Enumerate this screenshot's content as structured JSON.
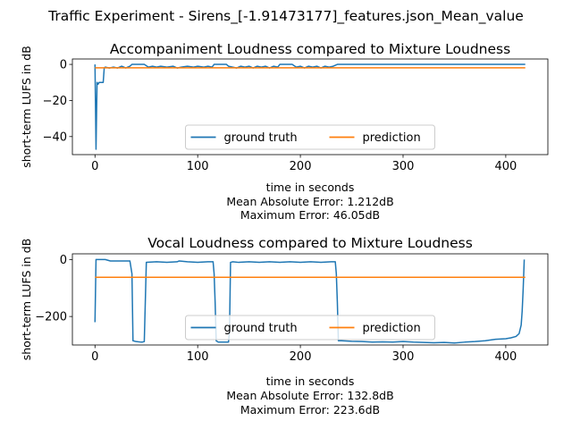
{
  "suptitle": "Traffic Experiment - Sirens_[-1.91473177]_features.json_Mean_value",
  "colors": {
    "ground_truth": "#1f77b4",
    "prediction": "#ff7f0e"
  },
  "chart_data": [
    {
      "type": "line",
      "title": "Accompaniment Loudness compared to Mixture Loudness",
      "xlabel": "time in seconds",
      "ylabel": "short-term LUFS in dB",
      "xlim": [
        -22,
        441
      ],
      "ylim": [
        -50,
        3
      ],
      "xticks": [
        0,
        100,
        200,
        300,
        400
      ],
      "yticks": [
        0,
        -20,
        -40
      ],
      "grid": false,
      "legend": {
        "position": "lower center",
        "entries": [
          "ground truth",
          "prediction"
        ]
      },
      "metrics": [
        "Mean Absolute Error: 1.212dB",
        "Maximum Error: 46.05dB"
      ],
      "series": [
        {
          "name": "ground truth",
          "x": [
            0,
            1,
            2,
            3,
            4,
            5,
            8,
            9,
            10,
            14,
            18,
            22,
            26,
            30,
            34,
            36,
            40,
            44,
            48,
            52,
            56,
            60,
            64,
            70,
            76,
            80,
            84,
            90,
            96,
            100,
            106,
            110,
            114,
            116,
            120,
            124,
            128,
            130,
            134,
            138,
            142,
            146,
            150,
            154,
            158,
            162,
            166,
            170,
            174,
            178,
            180,
            184,
            188,
            192,
            196,
            200,
            204,
            208,
            212,
            216,
            220,
            224,
            228,
            232,
            236,
            238,
            250,
            300,
            350,
            400,
            415,
            418,
            419
          ],
          "values": [
            0,
            -47,
            -10,
            -11,
            -10,
            -10,
            -10,
            -2,
            -1.5,
            -2,
            -1.5,
            -2,
            -1,
            -2,
            -1,
            0,
            0,
            0,
            0,
            -1.5,
            -1,
            -1.5,
            -1,
            -1.5,
            -1,
            -2,
            -1.5,
            -1,
            -1.5,
            -1,
            -1.5,
            -1,
            -1.5,
            0,
            0,
            0,
            0,
            -1,
            -1.5,
            -2,
            -1,
            -1.5,
            -1,
            -2,
            -1,
            -1.5,
            -1,
            -2,
            -1,
            -1.5,
            0,
            0,
            0,
            0,
            -1.5,
            -1,
            -2,
            -1,
            -1.5,
            -1,
            -2,
            -1,
            -1.5,
            -1,
            0,
            0,
            0,
            0,
            0,
            0,
            0,
            0,
            0
          ]
        },
        {
          "name": "prediction",
          "x": [
            0,
            419
          ],
          "values": [
            -1.91,
            -1.91
          ]
        }
      ]
    },
    {
      "type": "line",
      "title": "Vocal Loudness compared to Mixture Loudness",
      "xlabel": "time in seconds",
      "ylabel": "short-term LUFS in dB",
      "xlim": [
        -22,
        441
      ],
      "ylim": [
        -300,
        20
      ],
      "xticks": [
        0,
        100,
        200,
        300,
        400
      ],
      "yticks": [
        0,
        -200
      ],
      "grid": false,
      "legend": {
        "position": "lower center",
        "entries": [
          "ground truth",
          "prediction"
        ]
      },
      "metrics": [
        "Mean Absolute Error: 132.8dB",
        "Maximum Error: 223.6dB"
      ],
      "series": [
        {
          "name": "ground truth",
          "x": [
            0,
            1,
            10,
            15,
            20,
            30,
            34,
            36,
            37,
            40,
            45,
            46,
            48,
            50,
            60,
            70,
            80,
            82,
            90,
            100,
            110,
            115,
            116,
            117,
            118,
            120,
            125,
            130,
            131,
            132,
            134,
            140,
            150,
            160,
            170,
            180,
            190,
            200,
            210,
            220,
            230,
            234,
            235,
            236,
            237,
            240,
            250,
            260,
            270,
            280,
            290,
            300,
            310,
            320,
            330,
            340,
            350,
            360,
            370,
            380,
            390,
            400,
            405,
            410,
            413,
            415,
            416,
            417,
            418
          ],
          "values": [
            -220,
            0,
            0,
            -5,
            -5,
            -5,
            -5,
            -50,
            -285,
            -288,
            -290,
            -290,
            -288,
            -10,
            -8,
            -10,
            -8,
            -5,
            -8,
            -10,
            -8,
            -8,
            -50,
            -150,
            -285,
            -290,
            -290,
            -290,
            -250,
            -10,
            -8,
            -10,
            -8,
            -10,
            -8,
            -10,
            -8,
            -10,
            -8,
            -10,
            -8,
            -8,
            -50,
            -150,
            -285,
            -285,
            -287,
            -288,
            -290,
            -289,
            -290,
            -288,
            -290,
            -291,
            -292,
            -291,
            -293,
            -290,
            -288,
            -285,
            -280,
            -278,
            -275,
            -270,
            -260,
            -230,
            -180,
            -100,
            0
          ]
        },
        {
          "name": "prediction",
          "x": [
            0,
            419
          ],
          "values": [
            -62.5,
            -62.5
          ]
        }
      ]
    }
  ]
}
